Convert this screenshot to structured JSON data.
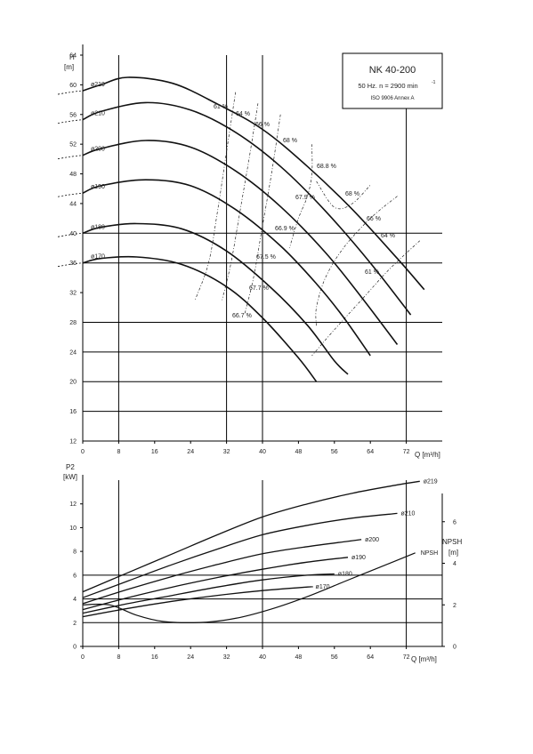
{
  "title_box": {
    "model": "NK 40-200",
    "condition": "50 Hz. n = 2900 min",
    "condition_sup": "-1",
    "standard": "ISO 9906 Annex A"
  },
  "chart_data": [
    {
      "type": "line",
      "name": "head",
      "xlabel": "Q [m³/h]",
      "ylabel_symbol": "H",
      "ylabel_unit": "[m]",
      "xlim": [
        0,
        80
      ],
      "ylim": [
        12,
        64
      ],
      "x_ticks": [
        "0",
        "8",
        "16",
        "24",
        "32",
        "40",
        "48",
        "56",
        "64",
        "72"
      ],
      "y_ticks": [
        "12",
        "16",
        "20",
        "24",
        "28",
        "32",
        "36",
        "40",
        "44",
        "48",
        "52",
        "56",
        "60",
        "64"
      ],
      "series": [
        {
          "name": "ø219",
          "points": [
            [
              0,
              59.2
            ],
            [
              4,
              60
            ],
            [
              10,
              61
            ],
            [
              20,
              60.2
            ],
            [
              30,
              57.4
            ],
            [
              40,
              54
            ],
            [
              50,
              49
            ],
            [
              60,
              43.2
            ],
            [
              70,
              36.6
            ],
            [
              76,
              32.4
            ]
          ]
        },
        {
          "name": "ø210",
          "points": [
            [
              0,
              55.3
            ],
            [
              4,
              56.4
            ],
            [
              14,
              57.6
            ],
            [
              24,
              56.6
            ],
            [
              34,
              53.6
            ],
            [
              44,
              49
            ],
            [
              54,
              43
            ],
            [
              64,
              36
            ],
            [
              73,
              29
            ]
          ]
        },
        {
          "name": "ø200",
          "points": [
            [
              0,
              50.5
            ],
            [
              4,
              51.4
            ],
            [
              14,
              52.5
            ],
            [
              24,
              51.6
            ],
            [
              34,
              48.4
            ],
            [
              44,
              43.6
            ],
            [
              54,
              37.4
            ],
            [
              62,
              31.4
            ],
            [
              70,
              25
            ]
          ]
        },
        {
          "name": "ø190",
          "points": [
            [
              0,
              45.4
            ],
            [
              4,
              46.4
            ],
            [
              14,
              47.2
            ],
            [
              24,
              46.4
            ],
            [
              34,
              43.2
            ],
            [
              44,
              38.3
            ],
            [
              52,
              33.2
            ],
            [
              58,
              28.7
            ],
            [
              64,
              23.5
            ]
          ]
        },
        {
          "name": "ø180",
          "points": [
            [
              0,
              40
            ],
            [
              4,
              40.8
            ],
            [
              12,
              41.3
            ],
            [
              22,
              40.6
            ],
            [
              32,
              37.6
            ],
            [
              42,
              32.6
            ],
            [
              50,
              27.6
            ],
            [
              56,
              22.8
            ],
            [
              59,
              21
            ]
          ]
        },
        {
          "name": "ø170",
          "points": [
            [
              0,
              36
            ],
            [
              4,
              36.6
            ],
            [
              12,
              36.8
            ],
            [
              22,
              35.8
            ],
            [
              32,
              32.8
            ],
            [
              40,
              28.6
            ],
            [
              48,
              23.2
            ],
            [
              52,
              20
            ]
          ]
        }
      ],
      "efficiency_labels": [
        "61 %",
        "64 %",
        "66 %",
        "68 %",
        "68.8 %",
        "68 %",
        "66 %",
        "64 %",
        "61 %",
        "67.9 %",
        "66.9 %",
        "67.5 %",
        "67.7 %",
        "66.7 %"
      ],
      "efficiency_lines": [
        {
          "points": [
            [
              34,
              59
            ],
            [
              32,
              51
            ],
            [
              30,
              43
            ],
            [
              28,
              36
            ],
            [
              25,
              31
            ]
          ]
        },
        {
          "points": [
            [
              39,
              57.5
            ],
            [
              37,
              50
            ],
            [
              35,
              43
            ],
            [
              33,
              36
            ],
            [
              31,
              31
            ]
          ]
        },
        {
          "points": [
            [
              44,
              56
            ],
            [
              42,
              48
            ],
            [
              40,
              41
            ],
            [
              38,
              34
            ],
            [
              36,
              29
            ]
          ]
        },
        {
          "points": [
            [
              51,
              52
            ],
            [
              51,
              48
            ],
            [
              50,
              45
            ],
            [
              48,
              42
            ],
            [
              46,
              38
            ]
          ]
        },
        {
          "points": [
            [
              52,
              47
            ],
            [
              56,
              43.5
            ],
            [
              60,
              44
            ],
            [
              64,
              46.5
            ]
          ]
        },
        {
          "points": [
            [
              70,
              45
            ],
            [
              64,
              42
            ],
            [
              58,
              38
            ],
            [
              54,
              34
            ],
            [
              52,
              30
            ],
            [
              52,
              27.5
            ]
          ]
        },
        {
          "points": [
            [
              75,
              39
            ],
            [
              68,
              35
            ],
            [
              62,
              31
            ],
            [
              56,
              27
            ],
            [
              51,
              23.5
            ]
          ]
        }
      ]
    },
    {
      "type": "line",
      "name": "power",
      "xlabel": "Q [m³/h]",
      "ylabel_symbol": "P2",
      "ylabel_unit": "[kW]",
      "xlim": [
        0,
        80
      ],
      "ylim": [
        0,
        14
      ],
      "x_ticks": [
        "0",
        "8",
        "16",
        "24",
        "32",
        "40",
        "48",
        "56",
        "64",
        "72"
      ],
      "y_ticks": [
        "0",
        "2",
        "4",
        "6",
        "8",
        "10",
        "12"
      ],
      "series": [
        {
          "name": "ø219",
          "points": [
            [
              0,
              4.6
            ],
            [
              10,
              6.2
            ],
            [
              20,
              7.8
            ],
            [
              30,
              9.4
            ],
            [
              40,
              10.9
            ],
            [
              50,
              12
            ],
            [
              60,
              12.9
            ],
            [
              70,
              13.6
            ],
            [
              75,
              13.9
            ]
          ]
        },
        {
          "name": "ø210",
          "points": [
            [
              0,
              4.1
            ],
            [
              10,
              5.5
            ],
            [
              20,
              6.9
            ],
            [
              30,
              8.2
            ],
            [
              40,
              9.4
            ],
            [
              50,
              10.2
            ],
            [
              60,
              10.8
            ],
            [
              70,
              11.2
            ]
          ]
        },
        {
          "name": "ø200",
          "points": [
            [
              0,
              3.6
            ],
            [
              10,
              4.8
            ],
            [
              20,
              5.9
            ],
            [
              30,
              6.9
            ],
            [
              40,
              7.8
            ],
            [
              50,
              8.4
            ],
            [
              60,
              8.9
            ],
            [
              62,
              9
            ]
          ]
        },
        {
          "name": "ø190",
          "points": [
            [
              0,
              3.1
            ],
            [
              10,
              4.1
            ],
            [
              20,
              5
            ],
            [
              30,
              5.8
            ],
            [
              40,
              6.5
            ],
            [
              50,
              7.1
            ],
            [
              59,
              7.5
            ]
          ]
        },
        {
          "name": "ø180",
          "points": [
            [
              0,
              2.8
            ],
            [
              10,
              3.6
            ],
            [
              20,
              4.3
            ],
            [
              30,
              5
            ],
            [
              40,
              5.6
            ],
            [
              50,
              6
            ],
            [
              56,
              6.1
            ]
          ]
        },
        {
          "name": "ø170",
          "points": [
            [
              0,
              2.5
            ],
            [
              10,
              3.2
            ],
            [
              20,
              3.8
            ],
            [
              30,
              4.3
            ],
            [
              40,
              4.7
            ],
            [
              50,
              5
            ],
            [
              51,
              5
            ]
          ]
        }
      ]
    },
    {
      "type": "line",
      "name": "npsh",
      "ylabel_symbol": "NPSH",
      "ylabel_unit": "[m]",
      "ylim": [
        0,
        8
      ],
      "y_ticks": [
        "0",
        "2",
        "4",
        "6"
      ],
      "series": [
        {
          "name": "NPSH",
          "points": [
            [
              0,
              2
            ],
            [
              6,
              2
            ],
            [
              12,
              1.5
            ],
            [
              18,
              1.2
            ],
            [
              26,
              1.15
            ],
            [
              34,
              1.35
            ],
            [
              42,
              1.8
            ],
            [
              50,
              2.4
            ],
            [
              58,
              3.1
            ],
            [
              66,
              3.8
            ],
            [
              74,
              4.5
            ]
          ]
        }
      ]
    }
  ]
}
